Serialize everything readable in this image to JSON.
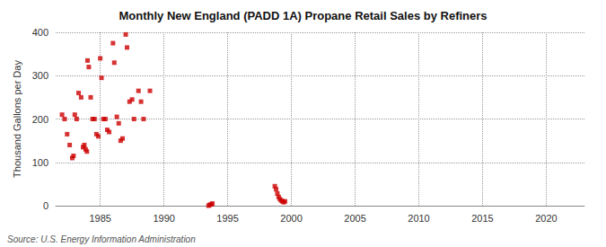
{
  "chart_data": {
    "type": "scatter",
    "title": "Monthly New England (PADD 1A) Propane Retail Sales by Refiners",
    "ylabel": "Thousand Gallons per Day",
    "annotations": [
      "Source: U.S. Energy Information Administration"
    ],
    "x": [
      1982.0,
      1982.2,
      1982.4,
      1982.6,
      1982.8,
      1982.9,
      1983.0,
      1983.15,
      1983.3,
      1983.5,
      1983.65,
      1983.75,
      1983.85,
      1983.95,
      1984.0,
      1984.1,
      1984.25,
      1984.4,
      1984.55,
      1984.7,
      1984.85,
      1985.0,
      1985.1,
      1985.25,
      1985.4,
      1985.55,
      1985.7,
      1986.0,
      1986.1,
      1986.3,
      1986.45,
      1986.6,
      1986.75,
      1987.0,
      1987.1,
      1987.3,
      1987.5,
      1987.65,
      1988.0,
      1988.2,
      1988.4,
      1988.9,
      1993.5,
      1993.6,
      1993.7,
      1993.8,
      1998.7,
      1998.8,
      1998.9,
      1999.0,
      1999.1,
      1999.2,
      1999.3,
      1999.4,
      1999.5
    ],
    "values": [
      210,
      200,
      165,
      140,
      110,
      115,
      210,
      200,
      260,
      250,
      135,
      140,
      130,
      125,
      335,
      320,
      250,
      200,
      200,
      165,
      160,
      340,
      295,
      200,
      200,
      175,
      170,
      375,
      330,
      205,
      190,
      150,
      155,
      395,
      365,
      240,
      245,
      200,
      265,
      240,
      200,
      265,
      0,
      2,
      3,
      5,
      45,
      38,
      28,
      20,
      15,
      12,
      10,
      8,
      10
    ],
    "color": "#cc0000",
    "marker": "square",
    "xlim": [
      1981.5,
      2023
    ],
    "ylim": [
      0,
      400
    ],
    "xticks": [
      1985,
      1990,
      1995,
      2000,
      2005,
      2010,
      2015,
      2020
    ],
    "yticks": [
      0,
      100,
      200,
      300,
      400
    ],
    "grid": true
  }
}
